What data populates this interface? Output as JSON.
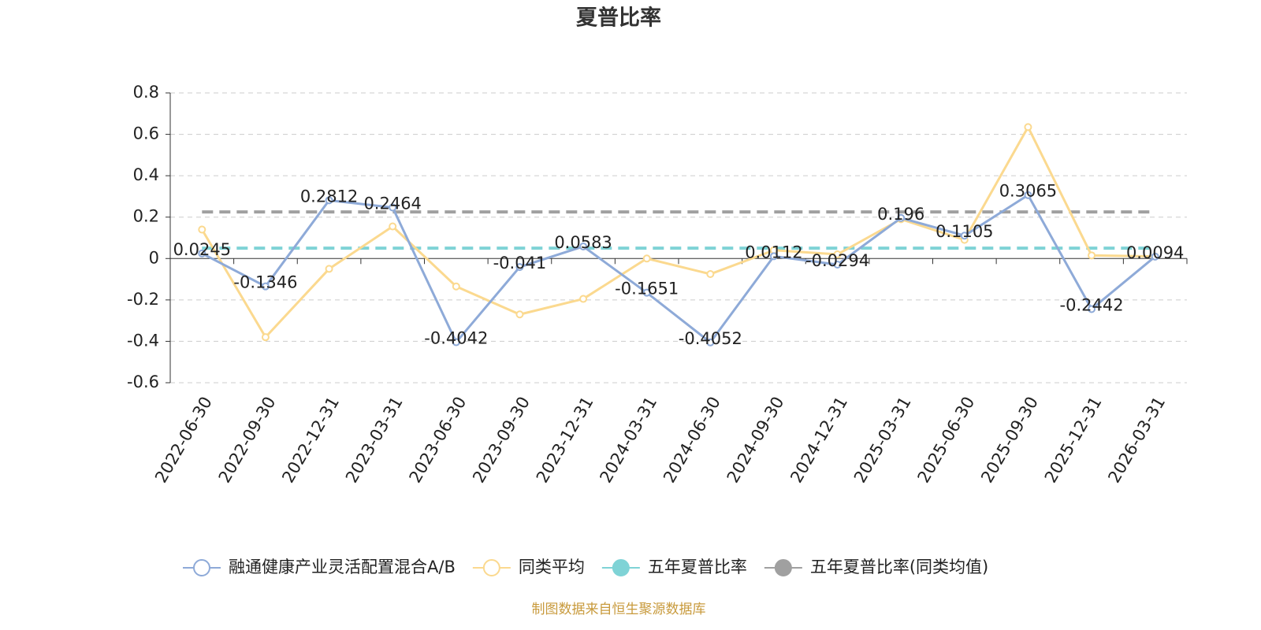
{
  "chart_data": {
    "type": "line",
    "title": "夏普比率",
    "categories": [
      "2022-06-30",
      "2022-09-30",
      "2022-12-31",
      "2023-03-31",
      "2023-06-30",
      "2023-09-30",
      "2023-12-31",
      "2024-03-31",
      "2024-06-30",
      "2024-09-30",
      "2024-12-31",
      "2025-03-31",
      "2025-06-30",
      "2025-09-30",
      "2025-12-31",
      "2026-03-31"
    ],
    "series": [
      {
        "name": "融通健康产业灵活配置混合A/B",
        "color": "#8eaad8",
        "line_style": "solid",
        "data_labels": true,
        "values": [
          0.0245,
          -0.1346,
          0.2812,
          0.2464,
          -0.4042,
          -0.041,
          0.0583,
          -0.1651,
          -0.4052,
          0.0112,
          -0.0294,
          0.196,
          0.1105,
          0.3065,
          -0.2442,
          0.0094
        ]
      },
      {
        "name": "同类平均",
        "color": "#fbd98f",
        "line_style": "solid",
        "data_labels": false,
        "values": [
          0.14,
          -0.38,
          -0.05,
          0.155,
          -0.135,
          -0.27,
          -0.195,
          0.0,
          -0.075,
          0.04,
          0.02,
          0.19,
          0.09,
          0.635,
          0.015,
          0.01
        ]
      },
      {
        "name": "五年夏普比率",
        "color": "#7fd3d6",
        "line_style": "dashed",
        "data_labels": false,
        "values": [
          0.05,
          0.05,
          0.05,
          0.05,
          0.05,
          0.05,
          0.05,
          0.05,
          0.05,
          0.05,
          0.05,
          0.05,
          0.05,
          0.05,
          0.05,
          0.05
        ]
      },
      {
        "name": "五年夏普比率(同类均值)",
        "color": "#a0a0a0",
        "line_style": "dashed",
        "data_labels": false,
        "values": [
          0.225,
          0.225,
          0.225,
          0.225,
          0.225,
          0.225,
          0.225,
          0.225,
          0.225,
          0.225,
          0.225,
          0.225,
          0.225,
          0.225,
          0.225,
          0.225
        ]
      }
    ],
    "ylim": [
      -0.6,
      0.8
    ],
    "yticks": [
      -0.6,
      -0.4,
      -0.2,
      0,
      0.2,
      0.4,
      0.6,
      0.8
    ],
    "grid": true,
    "legend": "bottom",
    "source": "制图数据来自恒生聚源数据库"
  }
}
